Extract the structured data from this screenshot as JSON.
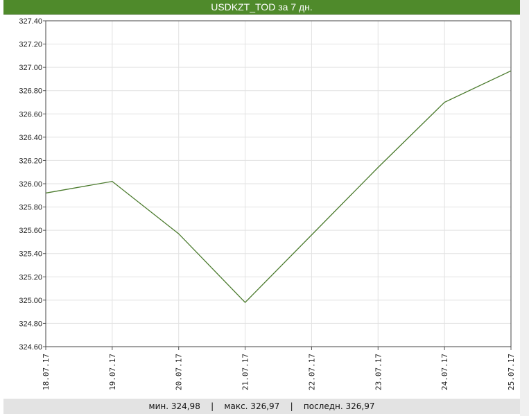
{
  "title": "USDKZT_TOD за 7 дн.",
  "chart_data": {
    "type": "line",
    "title": "USDKZT_TOD за 7 дн.",
    "categories": [
      "18.07.17",
      "19.07.17",
      "20.07.17",
      "21.07.17",
      "22.07.17",
      "23.07.17",
      "24.07.17",
      "25.07.17"
    ],
    "values": [
      325.92,
      326.02,
      325.57,
      324.98,
      325.56,
      326.14,
      326.7,
      326.97
    ],
    "ylim": [
      324.6,
      327.4
    ],
    "yticks": [
      "324.60",
      "324.80",
      "325.00",
      "325.20",
      "325.40",
      "325.60",
      "325.80",
      "326.00",
      "326.20",
      "326.40",
      "326.60",
      "326.80",
      "327.00",
      "327.20",
      "327.40"
    ],
    "grid": true,
    "line_color": "#4a7a2c"
  },
  "footer": {
    "min": "мин. 324,98",
    "max": "макс. 326,97",
    "last": "последн. 326,97",
    "sep": "|"
  }
}
